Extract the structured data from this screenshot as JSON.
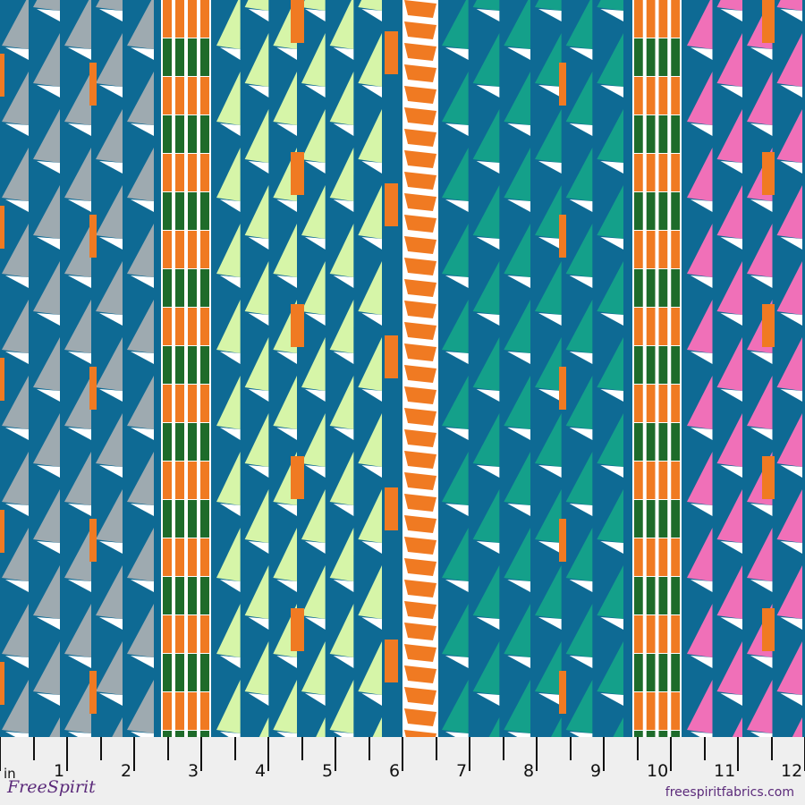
{
  "colors": {
    "background_blue": "#0e6a94",
    "gray": "#9eaab0",
    "light_green": "#d6f5a8",
    "teal": "#14a08a",
    "pink": "#f070b8",
    "orange": "#f07a22",
    "green": "#1e6b2a",
    "white": "#ffffff",
    "brand": "#5b2a7a"
  },
  "ruler": {
    "unit": "in",
    "labels": [
      "1",
      "2",
      "3",
      "4",
      "5",
      "6",
      "7",
      "8",
      "9",
      "10",
      "11",
      "12"
    ]
  },
  "brand": {
    "logo_text": "FreeSpirit",
    "url": "freespiritfabrics.com"
  }
}
